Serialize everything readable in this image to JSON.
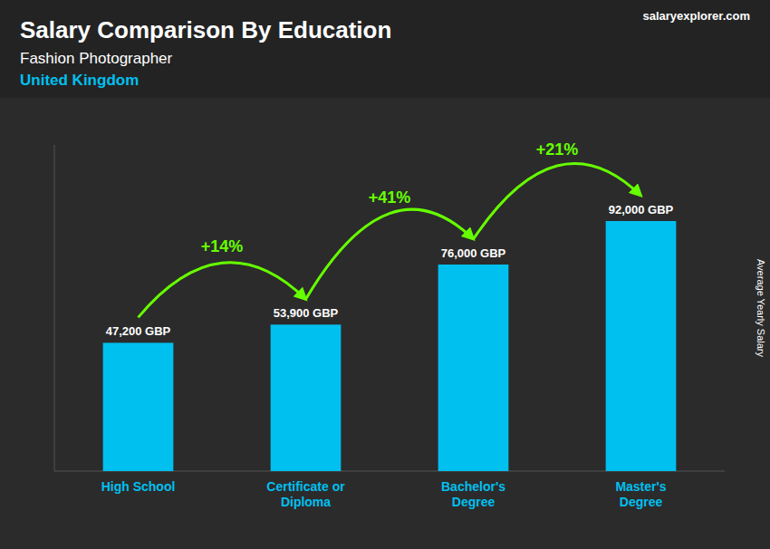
{
  "chart_data": {
    "type": "bar",
    "title": "Salary Comparison By Education",
    "subtitle": "Fashion Photographer",
    "location": "United Kingdom",
    "source": "salaryexplorer.com",
    "y_label": "Average Yearly Salary",
    "categories": [
      "High School",
      "Certificate or\nDiploma",
      "Bachelor's\nDegree",
      "Master's\nDegree"
    ],
    "values": [
      47200,
      53900,
      76000,
      92000
    ],
    "value_labels": [
      "47,200 GBP",
      "53,900 GBP",
      "76,000 GBP",
      "92,000 GBP"
    ],
    "data_labels": true,
    "annotations": [
      {
        "text": "+14%",
        "color": "#66ff00"
      },
      {
        "text": "+41%",
        "color": "#66ff00"
      },
      {
        "text": "+21%",
        "color": "#66ff00"
      }
    ],
    "color": "#00c0f0",
    "ylim": [
      0,
      120000
    ],
    "tick_labels": "x",
    "grid": false
  }
}
